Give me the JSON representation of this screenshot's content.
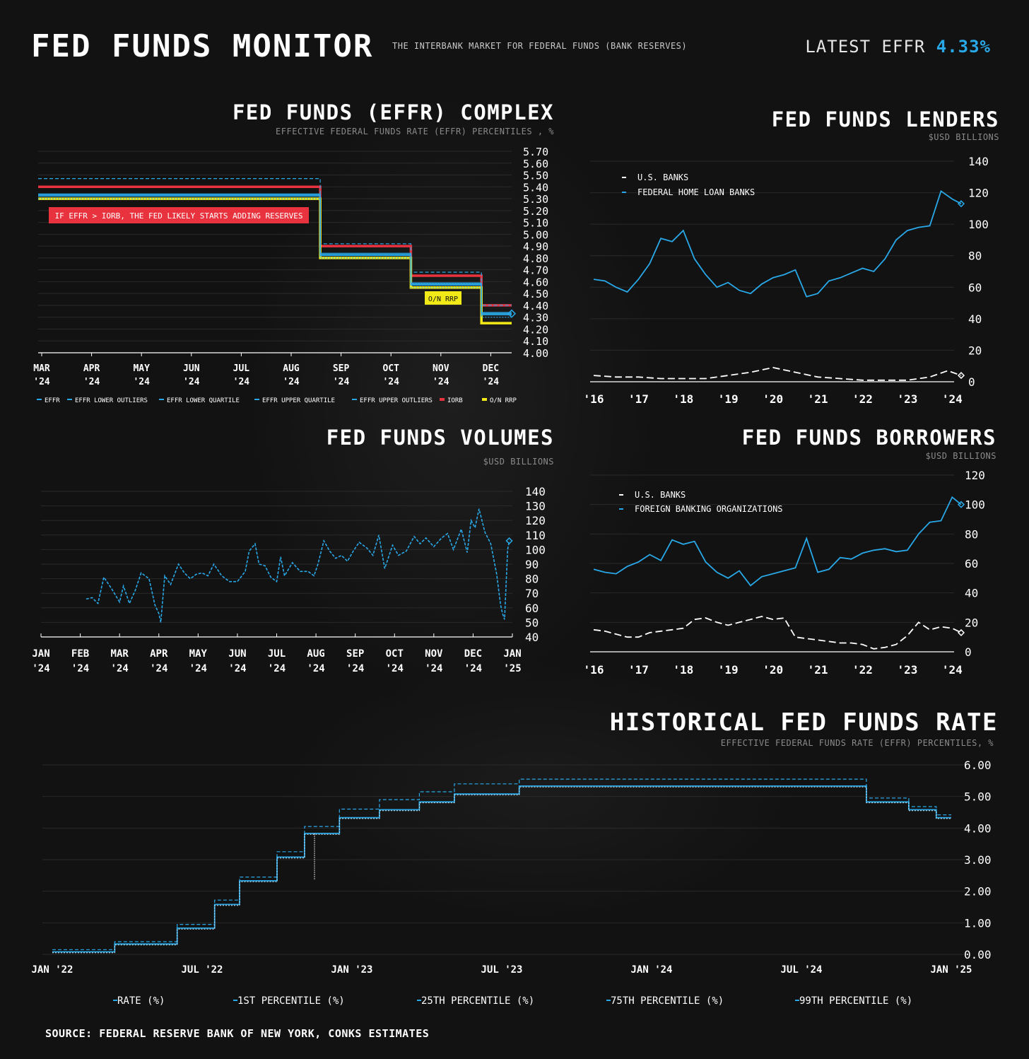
{
  "header": {
    "title": "FED FUNDS MONITOR",
    "subtitle": "THE INTERBANK MARKET FOR FEDERAL FUNDS (BANK RESERVES)",
    "latest_label": "LATEST EFFR",
    "latest_value": "4.33%"
  },
  "source": "SOURCE: FEDERAL RESERVE BANK OF NEW YORK, CONKS ESTIMATES",
  "colors": {
    "effr": "#29a8e8",
    "iorb": "#e8333e",
    "rrp": "#f2ea16",
    "us_banks": "#ffffff",
    "background": "#121212"
  },
  "chart_data": [
    {
      "id": "complex",
      "type": "line",
      "title": "FED FUNDS (EFFR) COMPLEX",
      "subtitle": "EFFECTIVE FEDERAL FUNDS RATE (EFFR) PERCENTILES , %",
      "ylim": [
        4.0,
        5.7
      ],
      "yticks": [
        "5.70",
        "5.60",
        "5.50",
        "5.40",
        "5.30",
        "5.20",
        "5.10",
        "5.00",
        "4.90",
        "4.80",
        "4.70",
        "4.60",
        "4.50",
        "4.40",
        "4.30",
        "4.20",
        "4.10",
        "4.00"
      ],
      "xticks": [
        [
          "MAR",
          "'24"
        ],
        [
          "APR",
          "'24"
        ],
        [
          "MAY",
          "'24"
        ],
        [
          "JUN",
          "'24"
        ],
        [
          "JUL",
          "'24"
        ],
        [
          "AUG",
          "'24"
        ],
        [
          "SEP",
          "'24"
        ],
        [
          "OCT",
          "'24"
        ],
        [
          "NOV",
          "'24"
        ],
        [
          "DEC",
          "'24"
        ]
      ],
      "x_range": [
        0,
        9.4
      ],
      "legend": [
        "EFFR",
        "EFFR LOWER OUTLIERS",
        "EFFR LOWER QUARTILE",
        "EFFR UPPER QUARTILE",
        "EFFR UPPER OUTLIERS",
        "IORB",
        "O/N RRP"
      ],
      "annotations": {
        "iorb_note": "IF EFFR > IORB, THE FED LIKELY STARTS ADDING RESERVES",
        "rrp_label": "O/N RRP"
      },
      "series": [
        {
          "name": "IORB",
          "color": "#e8333e",
          "steps": [
            [
              0,
              5.4
            ],
            [
              5.6,
              4.9
            ],
            [
              7.4,
              4.65
            ],
            [
              8.8,
              4.4
            ],
            [
              9.4,
              4.4
            ]
          ]
        },
        {
          "name": "O/N RRP",
          "color": "#f2ea16",
          "steps": [
            [
              0,
              5.3
            ],
            [
              5.6,
              4.8
            ],
            [
              7.4,
              4.55
            ],
            [
              8.8,
              4.25
            ],
            [
              9.4,
              4.25
            ]
          ]
        },
        {
          "name": "EFFR",
          "steps": [
            [
              0,
              5.33
            ],
            [
              5.6,
              4.83
            ],
            [
              7.4,
              4.58
            ],
            [
              8.8,
              4.33
            ],
            [
              9.4,
              4.33
            ]
          ]
        },
        {
          "name": "EFFR UPPER OUTLIERS",
          "steps": [
            [
              0,
              5.47
            ],
            [
              5.6,
              4.92
            ],
            [
              7.4,
              4.68
            ],
            [
              8.8,
              4.4
            ],
            [
              9.4,
              4.4
            ]
          ]
        },
        {
          "name": "EFFR UPPER QUARTILE",
          "steps": [
            [
              0,
              5.34
            ],
            [
              5.6,
              4.84
            ],
            [
              7.4,
              4.59
            ],
            [
              8.8,
              4.34
            ],
            [
              9.4,
              4.34
            ]
          ]
        },
        {
          "name": "EFFR LOWER QUARTILE",
          "steps": [
            [
              0,
              5.32
            ],
            [
              5.6,
              4.82
            ],
            [
              7.4,
              4.57
            ],
            [
              8.8,
              4.32
            ],
            [
              9.4,
              4.32
            ]
          ]
        },
        {
          "name": "EFFR LOWER OUTLIERS",
          "steps": [
            [
              0,
              5.3
            ],
            [
              5.6,
              4.8
            ],
            [
              7.4,
              4.55
            ],
            [
              8.8,
              4.3
            ],
            [
              9.4,
              4.3
            ]
          ]
        }
      ],
      "last_value": 4.33
    },
    {
      "id": "lenders",
      "type": "line",
      "title": "FED FUNDS LENDERS",
      "subtitle": "$USD BILLIONS",
      "ylim": [
        0,
        140
      ],
      "yticks": [
        "140",
        "120",
        "100",
        "80",
        "60",
        "40",
        "20",
        "0"
      ],
      "xticks": [
        "'16",
        "'17",
        "'18",
        "'19",
        "'20",
        "'21",
        "'22",
        "'23",
        "'24"
      ],
      "x_range": [
        2016,
        2024.2
      ],
      "legend": [
        "U.S. BANKS",
        "FEDERAL HOME LOAN BANKS"
      ],
      "series": [
        {
          "name": "FEDERAL HOME LOAN BANKS",
          "x": [
            2016.0,
            2016.25,
            2016.5,
            2016.75,
            2017.0,
            2017.25,
            2017.5,
            2017.75,
            2018.0,
            2018.25,
            2018.5,
            2018.75,
            2019.0,
            2019.25,
            2019.5,
            2019.75,
            2020.0,
            2020.25,
            2020.5,
            2020.75,
            2021.0,
            2021.25,
            2021.5,
            2021.75,
            2022.0,
            2022.25,
            2022.5,
            2022.75,
            2023.0,
            2023.25,
            2023.5,
            2023.75,
            2024.0,
            2024.2
          ],
          "values": [
            65,
            64,
            60,
            57,
            65,
            75,
            91,
            89,
            96,
            78,
            68,
            60,
            63,
            58,
            56,
            62,
            66,
            68,
            71,
            54,
            56,
            64,
            66,
            69,
            72,
            70,
            78,
            90,
            96,
            98,
            99,
            121,
            116,
            113
          ]
        },
        {
          "name": "U.S. BANKS",
          "x": [
            2016.0,
            2016.5,
            2017.0,
            2017.5,
            2018.0,
            2018.5,
            2019.0,
            2019.5,
            2020.0,
            2020.5,
            2021.0,
            2021.5,
            2022.0,
            2022.5,
            2023.0,
            2023.5,
            2023.9,
            2024.2
          ],
          "values": [
            4,
            3,
            3,
            2,
            2,
            2,
            4,
            6,
            9,
            6,
            3,
            2,
            1,
            1,
            1,
            3,
            7,
            4
          ]
        }
      ]
    },
    {
      "id": "volumes",
      "type": "line",
      "title": "FED FUNDS VOLUMES",
      "subtitle": "$USD BILLIONS",
      "ylim": [
        40,
        140
      ],
      "yticks": [
        "140",
        "130",
        "120",
        "110",
        "100",
        "90",
        "80",
        "70",
        "60",
        "50",
        "40"
      ],
      "xticks": [
        [
          "JAN",
          "'24"
        ],
        [
          "FEB",
          "'24"
        ],
        [
          "MAR",
          "'24"
        ],
        [
          "APR",
          "'24"
        ],
        [
          "MAY",
          "'24"
        ],
        [
          "JUN",
          "'24"
        ],
        [
          "JUL",
          "'24"
        ],
        [
          "AUG",
          "'24"
        ],
        [
          "SEP",
          "'24"
        ],
        [
          "OCT",
          "'24"
        ],
        [
          "NOV",
          "'24"
        ],
        [
          "DEC",
          "'24"
        ],
        [
          "JAN",
          "'25"
        ]
      ],
      "x_range": [
        0,
        12
      ],
      "series": [
        {
          "name": "Volume",
          "x": [
            1.15,
            1.3,
            1.45,
            1.6,
            1.8,
            2.0,
            2.1,
            2.25,
            2.4,
            2.55,
            2.75,
            2.9,
            3.0,
            3.05,
            3.1,
            3.15,
            3.3,
            3.5,
            3.65,
            3.8,
            3.95,
            4.1,
            4.25,
            4.4,
            4.6,
            4.8,
            5.0,
            5.2,
            5.3,
            5.45,
            5.55,
            5.7,
            5.85,
            6.0,
            6.1,
            6.2,
            6.4,
            6.6,
            6.8,
            6.95,
            7.05,
            7.2,
            7.35,
            7.5,
            7.65,
            7.8,
            7.95,
            8.1,
            8.3,
            8.45,
            8.6,
            8.75,
            8.95,
            9.1,
            9.3,
            9.5,
            9.65,
            9.8,
            10.0,
            10.2,
            10.35,
            10.5,
            10.7,
            10.85,
            10.95,
            11.05,
            11.15,
            11.3,
            11.45,
            11.6,
            11.7,
            11.75,
            11.8,
            11.88,
            11.92
          ],
          "values": [
            66,
            67,
            63,
            81,
            73,
            64,
            75,
            63,
            72,
            84,
            80,
            62,
            56,
            50,
            66,
            82,
            76,
            90,
            84,
            80,
            83,
            84,
            82,
            90,
            82,
            78,
            78,
            85,
            99,
            104,
            90,
            89,
            81,
            78,
            95,
            82,
            91,
            85,
            85,
            82,
            90,
            106,
            99,
            94,
            96,
            92,
            99,
            105,
            101,
            96,
            110,
            87,
            103,
            96,
            99,
            109,
            104,
            108,
            102,
            108,
            111,
            100,
            114,
            98,
            120,
            115,
            128,
            112,
            104,
            83,
            62,
            56,
            52,
            100,
            106
          ]
        }
      ]
    },
    {
      "id": "borrowers",
      "type": "line",
      "title": "FED FUNDS BORROWERS",
      "subtitle": "$USD BILLIONS",
      "ylim": [
        0,
        120
      ],
      "yticks": [
        "120",
        "100",
        "80",
        "60",
        "40",
        "20",
        "0"
      ],
      "xticks": [
        "'16",
        "'17",
        "'18",
        "'19",
        "'20",
        "'21",
        "'22",
        "'23",
        "'24"
      ],
      "x_range": [
        2016,
        2024.2
      ],
      "legend": [
        "U.S. BANKS",
        "FOREIGN BANKING ORGANIZATIONS"
      ],
      "series": [
        {
          "name": "FOREIGN BANKING ORGANIZATIONS",
          "x": [
            2016.0,
            2016.25,
            2016.5,
            2016.75,
            2017.0,
            2017.25,
            2017.5,
            2017.75,
            2018.0,
            2018.25,
            2018.5,
            2018.75,
            2019.0,
            2019.25,
            2019.5,
            2019.75,
            2020.0,
            2020.25,
            2020.5,
            2020.75,
            2021.0,
            2021.25,
            2021.5,
            2021.75,
            2022.0,
            2022.25,
            2022.5,
            2022.75,
            2023.0,
            2023.25,
            2023.5,
            2023.75,
            2024.0,
            2024.2
          ],
          "values": [
            56,
            54,
            53,
            58,
            61,
            66,
            62,
            76,
            73,
            75,
            61,
            54,
            50,
            55,
            45,
            51,
            53,
            55,
            57,
            77,
            54,
            56,
            64,
            63,
            67,
            69,
            70,
            68,
            69,
            80,
            88,
            89,
            105,
            100
          ]
        },
        {
          "name": "U.S. BANKS",
          "x": [
            2016.0,
            2016.25,
            2016.5,
            2016.75,
            2017.0,
            2017.25,
            2017.5,
            2017.75,
            2018.0,
            2018.25,
            2018.5,
            2018.75,
            2019.0,
            2019.25,
            2019.5,
            2019.75,
            2020.0,
            2020.25,
            2020.5,
            2020.75,
            2021.0,
            2021.25,
            2021.5,
            2021.75,
            2022.0,
            2022.25,
            2022.5,
            2022.75,
            2023.0,
            2023.25,
            2023.5,
            2023.75,
            2024.0,
            2024.2
          ],
          "values": [
            15,
            14,
            12,
            10,
            10,
            13,
            14,
            15,
            16,
            22,
            23,
            20,
            18,
            20,
            22,
            24,
            22,
            23,
            10,
            9,
            8,
            7,
            6,
            6,
            5,
            2,
            3,
            5,
            11,
            20,
            15,
            17,
            16,
            13
          ]
        }
      ]
    },
    {
      "id": "historical",
      "type": "line",
      "title": "HISTORICAL FED FUNDS RATE",
      "subtitle": "EFFECTIVE FEDERAL FUNDS RATE (EFFR) PERCENTILES, %",
      "ylim": [
        0,
        6
      ],
      "yticks": [
        "6.00",
        "5.00",
        "4.00",
        "3.00",
        "2.00",
        "1.00",
        "0.00"
      ],
      "xticks": [
        "JAN '22",
        "JUL '22",
        "JAN '23",
        "JUL '23",
        "JAN '24",
        "JUL '24",
        "JAN '25"
      ],
      "x_range": [
        0,
        36
      ],
      "legend": [
        "RATE (%)",
        "1ST PERCENTILE (%)",
        "25TH PERCENTILE (%)",
        "75TH PERCENTILE (%)",
        "99TH PERCENTILE (%)"
      ],
      "series": [
        {
          "name": "RATE (%)",
          "steps": [
            [
              0,
              0.08
            ],
            [
              2.5,
              0.33
            ],
            [
              5.0,
              0.83
            ],
            [
              6.5,
              1.58
            ],
            [
              7.5,
              2.33
            ],
            [
              9.0,
              3.08
            ],
            [
              10.1,
              3.83
            ],
            [
              11.5,
              4.33
            ],
            [
              13.1,
              4.58
            ],
            [
              14.7,
              4.83
            ],
            [
              16.1,
              5.08
            ],
            [
              18.7,
              5.33
            ],
            [
              32.6,
              4.83
            ],
            [
              34.3,
              4.58
            ],
            [
              35.4,
              4.33
            ],
            [
              36,
              4.33
            ]
          ]
        },
        {
          "name": "99TH PERCENTILE (%)",
          "steps": [
            [
              0,
              0.15
            ],
            [
              2.5,
              0.4
            ],
            [
              5.0,
              0.95
            ],
            [
              6.5,
              1.72
            ],
            [
              7.5,
              2.45
            ],
            [
              9.0,
              3.25
            ],
            [
              10.1,
              4.05
            ],
            [
              11.5,
              4.6
            ],
            [
              13.1,
              4.9
            ],
            [
              14.7,
              5.15
            ],
            [
              16.1,
              5.4
            ],
            [
              18.7,
              5.55
            ],
            [
              32.6,
              4.95
            ],
            [
              34.3,
              4.68
            ],
            [
              35.4,
              4.42
            ],
            [
              36,
              4.42
            ]
          ]
        },
        {
          "name": "1ST PERCENTILE (%)",
          "steps": [
            [
              0,
              0.05
            ],
            [
              2.5,
              0.3
            ],
            [
              5.0,
              0.8
            ],
            [
              6.5,
              1.55
            ],
            [
              7.5,
              2.3
            ],
            [
              9.0,
              3.05
            ],
            [
              10.1,
              3.8
            ],
            [
              11.5,
              4.3
            ],
            [
              13.1,
              4.55
            ],
            [
              14.7,
              4.8
            ],
            [
              16.1,
              5.05
            ],
            [
              18.7,
              5.3
            ],
            [
              32.6,
              4.8
            ],
            [
              34.3,
              4.55
            ],
            [
              35.4,
              4.3
            ],
            [
              36,
              4.3
            ]
          ]
        }
      ],
      "spike": {
        "x": 10.5,
        "low": 2.35
      }
    }
  ]
}
